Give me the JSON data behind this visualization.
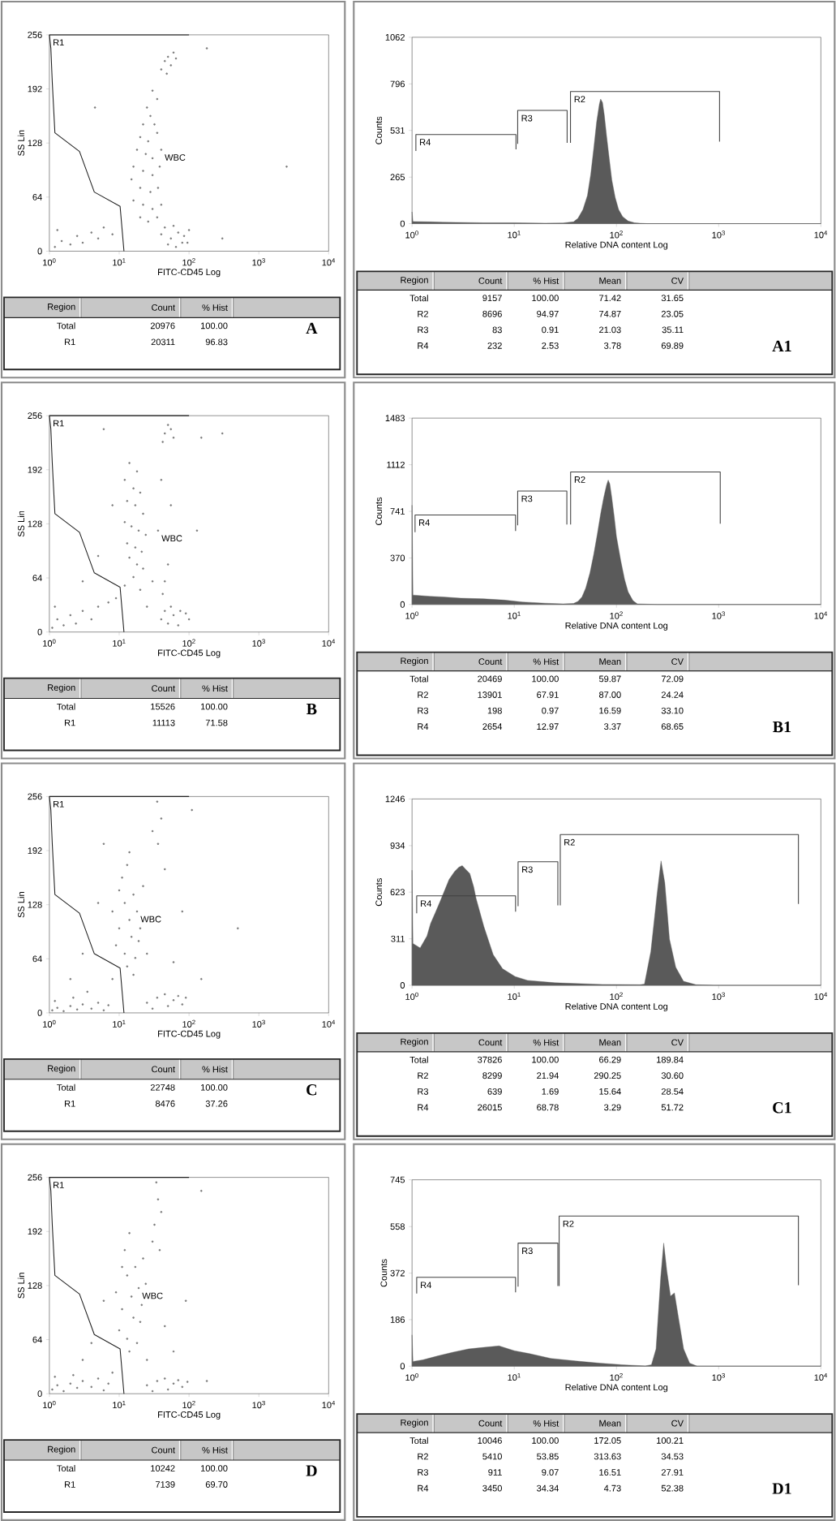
{
  "chart_data": [
    {
      "type": "scatter",
      "title": "A",
      "xlabel": "FITC-CD45 Log",
      "ylabel": "SS Lin",
      "log": "x",
      "xlim": [
        1,
        10000
      ],
      "ylim": [
        0,
        256
      ],
      "xticks": [
        {
          "value": 1,
          "label": "10$^{0}$"
        },
        {
          "value": 10,
          "label": "10$^{1}$"
        },
        {
          "value": 100,
          "label": "10$^{2}$"
        },
        {
          "value": 1000,
          "label": "10$^{3}$"
        },
        {
          "value": 10000,
          "label": "10$^{4}$"
        }
      ],
      "yticks": [
        0,
        64,
        128,
        192,
        256
      ],
      "series": [
        {
          "type": "scatter",
          "color": "#787878",
          "x": [
            45,
            50,
            55,
            60,
            40,
            48,
            65,
            30,
            35,
            25,
            28,
            22,
            32,
            20,
            26,
            35,
            18,
            24,
            30,
            40,
            16,
            22,
            30,
            38,
            15,
            20,
            28,
            36,
            16,
            22,
            30,
            40,
            20,
            26,
            35,
            40,
            55,
            70,
            85,
            100,
            50,
            65,
            80,
            45,
            95,
            60,
            1.2,
            1.5,
            2,
            2.5,
            3,
            4,
            5,
            6,
            1.3,
            8,
            2500,
            180,
            4.5,
            300
          ],
          "values": [
            225,
            230,
            220,
            235,
            215,
            210,
            228,
            190,
            180,
            170,
            160,
            150,
            150,
            135,
            130,
            140,
            120,
            115,
            110,
            120,
            100,
            95,
            90,
            100,
            85,
            75,
            70,
            75,
            60,
            55,
            50,
            55,
            40,
            35,
            40,
            20,
            15,
            22,
            18,
            25,
            8,
            5,
            10,
            28,
            10,
            30,
            5,
            12,
            8,
            18,
            10,
            22,
            15,
            28,
            25,
            20,
            100,
            240,
            170,
            15
          ]
        },
        {
          "type": "line",
          "color": "#202020",
          "x": [
            100,
            1,
            1.05,
            1.1,
            1.2,
            2.7,
            4.4,
            10.3,
            11.7
          ],
          "values": [
            256,
            256,
            240,
            200,
            140,
            118,
            70,
            53,
            0
          ]
        }
      ],
      "annotations": [
        {
          "text": "R1",
          "x": 1,
          "y": 256
        },
        {
          "text": "WBC",
          "x": 40,
          "y": 120
        },
        "Region",
        "Count",
        "% Hist",
        "Total",
        "20976",
        "100.00",
        "R1",
        "20311",
        "96.83"
      ]
    },
    {
      "type": "area",
      "title": "A1",
      "xlabel": "Relative DNA content Log",
      "ylabel": "Counts",
      "log": "x",
      "xlim": [
        1,
        10000
      ],
      "ylim": [
        0,
        1062
      ],
      "xticks": [
        {
          "value": 1,
          "label": "10$^{0}$"
        },
        {
          "value": 10,
          "label": "10$^{1}$"
        },
        {
          "value": 100,
          "label": "10$^{2}$"
        },
        {
          "value": 1000,
          "label": "10$^{3}$"
        },
        {
          "value": 10000,
          "label": "10$^{4}$"
        }
      ],
      "yticks": [
        0,
        265,
        531,
        796,
        1062
      ],
      "series": [
        {
          "type": "area",
          "color": "#5a5a5a",
          "x": [
            1,
            1.02,
            1.5,
            2,
            5,
            10,
            20,
            30,
            38,
            42,
            47,
            52,
            56,
            60,
            64,
            68,
            70,
            73,
            76,
            80,
            85,
            90,
            97,
            105,
            115,
            130,
            150,
            170,
            200,
            10000
          ],
          "values": [
            67,
            12,
            10,
            8,
            5,
            5,
            3,
            4,
            10,
            30,
            80,
            160,
            280,
            430,
            580,
            680,
            710,
            690,
            620,
            500,
            370,
            250,
            150,
            80,
            40,
            15,
            5,
            2,
            0,
            0
          ]
        },
        {
          "type": "line",
          "color": "#404040",
          "x": [
            1.09,
            1.09,
            10.4,
            10.4
          ],
          "values": [
            414,
            508,
            508,
            423
          ]
        },
        {
          "type": "line",
          "color": "#404040",
          "x": [
            10.8,
            10.8,
            32.9,
            32.9
          ],
          "values": [
            455,
            645,
            645,
            460
          ]
        },
        {
          "type": "line",
          "color": "#404040",
          "x": [
            35.5,
            35.5,
            1020,
            1020
          ],
          "values": [
            460,
            753,
            753,
            467
          ]
        }
      ],
      "annotations": [
        {
          "text": "R4",
          "x": 1.09,
          "y": 508
        },
        {
          "text": "R3",
          "x": 10.8,
          "y": 645
        },
        {
          "text": "R2",
          "x": 35.5,
          "y": 753
        },
        "Region",
        "Count",
        "% Hist",
        "Mean",
        "CV",
        "Total",
        "9157",
        "100.00",
        "71.42",
        "31.65",
        "R2",
        "8696",
        "94.97",
        "74.87",
        "23.05",
        "R3",
        "83",
        "0.91",
        "21.03",
        "35.11",
        "R4",
        "232",
        "2.53",
        "3.78",
        "69.89"
      ]
    },
    {
      "type": "scatter",
      "title": "B",
      "xlabel": "FITC-CD45 Log",
      "ylabel": "SS Lin",
      "log": "x",
      "xlim": [
        1,
        10000
      ],
      "ylim": [
        0,
        256
      ],
      "xticks": [
        {
          "value": 1,
          "label": "10$^{0}$"
        },
        {
          "value": 10,
          "label": "10$^{1}$"
        },
        {
          "value": 100,
          "label": "10$^{2}$"
        },
        {
          "value": 1000,
          "label": "10$^{3}$"
        },
        {
          "value": 10000,
          "label": "10$^{4}$"
        }
      ],
      "yticks": [
        0,
        64,
        128,
        192,
        256
      ],
      "series": [
        {
          "type": "scatter",
          "color": "#787878",
          "x": [
            45,
            50,
            42,
            55,
            60,
            14,
            18,
            12,
            16,
            20,
            13,
            17,
            22,
            12,
            15,
            19,
            24,
            13,
            17,
            21,
            14,
            18,
            22,
            16,
            12,
            20,
            45,
            42,
            50,
            48,
            55,
            40,
            40,
            50,
            60,
            75,
            90,
            55,
            70,
            100,
            45,
            1.1,
            1.3,
            1.6,
            2,
            2.4,
            3,
            4,
            5,
            7,
            1.2,
            9,
            3,
            5,
            8,
            150,
            300,
            130,
            6,
            25,
            30,
            36
          ],
          "values": [
            235,
            245,
            225,
            240,
            230,
            200,
            190,
            180,
            170,
            165,
            155,
            150,
            140,
            130,
            125,
            120,
            115,
            105,
            100,
            95,
            88,
            80,
            75,
            65,
            55,
            50,
            60,
            45,
            80,
            110,
            150,
            180,
            15,
            10,
            20,
            25,
            22,
            30,
            8,
            15,
            25,
            5,
            15,
            8,
            20,
            10,
            25,
            15,
            30,
            35,
            30,
            40,
            60,
            90,
            150,
            230,
            235,
            120,
            240,
            30,
            60,
            120
          ]
        },
        {
          "type": "line",
          "color": "#202020",
          "x": [
            100,
            1,
            1.05,
            1.1,
            1.2,
            2.7,
            4.4,
            10.3,
            11.7
          ],
          "values": [
            256,
            256,
            240,
            200,
            140,
            118,
            70,
            53,
            0
          ]
        }
      ],
      "annotations": [
        {
          "text": "R1",
          "x": 1,
          "y": 256
        },
        {
          "text": "WBC",
          "x": 36,
          "y": 120
        },
        "Region",
        "Count",
        "% Hist",
        "Total",
        "15526",
        "100.00",
        "R1",
        "11113",
        "71.58"
      ]
    },
    {
      "type": "area",
      "title": "B1",
      "xlabel": "Relative DNA content Log",
      "ylabel": "Counts",
      "log": "x",
      "xlim": [
        1,
        10000
      ],
      "ylim": [
        0,
        1483
      ],
      "xticks": [
        {
          "value": 1,
          "label": "10$^{0}$"
        },
        {
          "value": 10,
          "label": "10$^{1}$"
        },
        {
          "value": 100,
          "label": "10$^{2}$"
        },
        {
          "value": 1000,
          "label": "10$^{3}$"
        },
        {
          "value": 10000,
          "label": "10$^{4}$"
        }
      ],
      "yticks": [
        0,
        370,
        741,
        1112,
        1483
      ],
      "series": [
        {
          "type": "area",
          "color": "#5a5a5a",
          "x": [
            1,
            1.02,
            1.5,
            2,
            3,
            5,
            8,
            12,
            20,
            30,
            38,
            42,
            46,
            50,
            55,
            60,
            65,
            70,
            75,
            80,
            83,
            86,
            90,
            95,
            100,
            110,
            120,
            130,
            145,
            160,
            250,
            10000
          ],
          "values": [
            790,
            75,
            65,
            60,
            50,
            45,
            35,
            20,
            10,
            5,
            8,
            25,
            60,
            130,
            250,
            400,
            560,
            720,
            850,
            950,
            990,
            960,
            850,
            700,
            540,
            350,
            200,
            100,
            30,
            5,
            0,
            0
          ]
        },
        {
          "type": "line",
          "color": "#404040",
          "x": [
            1.07,
            1.07,
            10.3,
            10.3
          ],
          "values": [
            575,
            712,
            712,
            585
          ]
        },
        {
          "type": "line",
          "color": "#404040",
          "x": [
            10.8,
            10.8,
            32.7,
            32.7
          ],
          "values": [
            630,
            903,
            903,
            637
          ]
        },
        {
          "type": "line",
          "color": "#404040",
          "x": [
            35.6,
            35.6,
            1036,
            1036
          ],
          "values": [
            637,
            1055,
            1055,
            642
          ]
        }
      ],
      "annotations": [
        {
          "text": "R4",
          "x": 1.07,
          "y": 712
        },
        {
          "text": "R3",
          "x": 10.8,
          "y": 903
        },
        {
          "text": "R2",
          "x": 35.6,
          "y": 1055
        },
        "Region",
        "Count",
        "% Hist",
        "Mean",
        "CV",
        "Total",
        "20469",
        "100.00",
        "59.87",
        "72.09",
        "R2",
        "13901",
        "67.91",
        "87.00",
        "24.24",
        "R3",
        "198",
        "0.97",
        "16.59",
        "33.10",
        "R4",
        "2654",
        "12.97",
        "3.37",
        "68.65"
      ]
    },
    {
      "type": "scatter",
      "title": "C",
      "xlabel": "FITC-CD45 Log",
      "ylabel": "SS Lin",
      "log": "x",
      "xlim": [
        1,
        10000
      ],
      "ylim": [
        0,
        256
      ],
      "xticks": [
        {
          "value": 1,
          "label": "10$^{0}$"
        },
        {
          "value": 10,
          "label": "10$^{1}$"
        },
        {
          "value": 100,
          "label": "10$^{2}$"
        },
        {
          "value": 1000,
          "label": "10$^{3}$"
        },
        {
          "value": 10000,
          "label": "10$^{4}$"
        }
      ],
      "yticks": [
        0,
        64,
        128,
        192,
        256
      ],
      "series": [
        {
          "type": "scatter",
          "color": "#787878",
          "x": [
            8,
            10,
            12,
            14,
            16,
            11,
            13,
            15,
            18,
            9,
            20,
            12,
            17,
            22,
            14,
            10,
            19,
            13,
            16,
            36,
            40,
            35,
            45,
            30,
            25,
            35,
            45,
            60,
            80,
            50,
            70,
            30,
            90,
            1.1,
            1.3,
            1.6,
            2,
            2.5,
            3,
            4,
            5,
            6,
            1.2,
            2.2,
            3.5,
            7,
            3,
            5,
            6,
            25,
            60,
            80,
            110,
            2,
            150,
            500,
            8
          ],
          "values": [
            120,
            100,
            130,
            110,
            140,
            160,
            175,
            90,
            120,
            80,
            100,
            70,
            65,
            150,
            190,
            145,
            85,
            55,
            45,
            200,
            230,
            250,
            170,
            215,
            12,
            18,
            22,
            15,
            10,
            8,
            20,
            5,
            18,
            3,
            6,
            2,
            8,
            4,
            10,
            5,
            12,
            3,
            14,
            18,
            25,
            9,
            70,
            130,
            200,
            70,
            60,
            120,
            240,
            40,
            40,
            100,
            40
          ]
        },
        {
          "type": "line",
          "color": "#202020",
          "x": [
            100,
            1,
            1.05,
            1.1,
            1.2,
            2.7,
            4.4,
            10.3,
            11.7
          ],
          "values": [
            256,
            256,
            240,
            200,
            140,
            118,
            70,
            53,
            0
          ]
        }
      ],
      "annotations": [
        {
          "text": "R1",
          "x": 1,
          "y": 256
        },
        {
          "text": "WBC",
          "x": 18,
          "y": 120
        },
        "Region",
        "Count",
        "% Hist",
        "Total",
        "22748",
        "100.00",
        "R1",
        "8476",
        "37.26"
      ]
    },
    {
      "type": "area",
      "title": "C1",
      "xlabel": "Relative DNA content Log",
      "ylabel": "Counts",
      "log": "x",
      "xlim": [
        1,
        10000
      ],
      "ylim": [
        0,
        1246
      ],
      "xticks": [
        {
          "value": 1,
          "label": "10$^{0}$"
        },
        {
          "value": 10,
          "label": "10$^{1}$"
        },
        {
          "value": 100,
          "label": "10$^{2}$"
        },
        {
          "value": 1000,
          "label": "10$^{3}$"
        },
        {
          "value": 10000,
          "label": "10$^{4}$"
        }
      ],
      "yticks": [
        0,
        311,
        623,
        934,
        1246
      ],
      "series": [
        {
          "type": "area",
          "color": "#5a5a5a",
          "x": [
            1,
            1.02,
            1.2,
            1.4,
            1.52,
            1.7,
            1.88,
            2.1,
            2.3,
            2.6,
            2.87,
            3.1,
            3.3,
            3.67,
            4,
            4.23,
            5.04,
            6.22,
            7.68,
            10.2,
            13.5,
            25,
            73,
            170,
            188,
            217,
            249,
            273,
            297,
            330,
            380,
            453,
            601,
            900,
            10000
          ],
          "values": [
            770,
            280,
            250,
            330,
            414,
            490,
            560,
            640,
            707,
            760,
            790,
            800,
            780,
            748,
            660,
            581,
            393,
            205,
            111,
            59,
            33,
            17,
            6,
            4,
            8,
            226,
            602,
            832,
            686,
            309,
            121,
            27,
            4,
            0,
            0
          ]
        },
        {
          "type": "line",
          "color": "#404040",
          "x": [
            1.11,
            1.11,
            10.3,
            10.3
          ],
          "values": [
            481,
            598,
            598,
            493
          ]
        },
        {
          "type": "line",
          "color": "#404040",
          "x": [
            10.9,
            10.9,
            26.7,
            26.7
          ],
          "values": [
            529,
            826,
            826,
            535
          ]
        },
        {
          "type": "line",
          "color": "#404040",
          "x": [
            28.2,
            28.2,
            6030,
            6030
          ],
          "values": [
            535,
            1008,
            1008,
            544
          ]
        }
      ],
      "annotations": [
        {
          "text": "R4",
          "x": 1.11,
          "y": 598
        },
        {
          "text": "R3",
          "x": 10.9,
          "y": 826
        },
        {
          "text": "R2",
          "x": 28.2,
          "y": 1008
        },
        "Region",
        "Count",
        "% Hist",
        "Mean",
        "CV",
        "Total",
        "37826",
        "100.00",
        "66.29",
        "189.84",
        "R2",
        "8299",
        "21.94",
        "290.25",
        "30.60",
        "R3",
        "639",
        "1.69",
        "15.64",
        "28.54",
        "R4",
        "26015",
        "68.78",
        "3.29",
        "51.72"
      ]
    },
    {
      "type": "scatter",
      "title": "D",
      "xlabel": "FITC-CD45 Log",
      "ylabel": "SS Lin",
      "log": "x",
      "xlim": [
        1,
        10000
      ],
      "ylim": [
        0,
        256
      ],
      "xticks": [
        {
          "value": 1,
          "label": "10$^{0}$"
        },
        {
          "value": 10,
          "label": "10$^{1}$"
        },
        {
          "value": 100,
          "label": "10$^{2}$"
        },
        {
          "value": 1000,
          "label": "10$^{3}$"
        },
        {
          "value": 10000,
          "label": "10$^{4}$"
        }
      ],
      "yticks": [
        0,
        64,
        128,
        192,
        256
      ],
      "series": [
        {
          "type": "scatter",
          "color": "#787878",
          "x": [
            9,
            11,
            13,
            15,
            17,
            12,
            14,
            16,
            19,
            10,
            21,
            13,
            18,
            22,
            11,
            20,
            14,
            24,
            32,
            36,
            34,
            40,
            30,
            38,
            25,
            35,
            45,
            60,
            80,
            50,
            70,
            30,
            95,
            1.1,
            1.3,
            1.6,
            2,
            2.5,
            3,
            4,
            5,
            6,
            1.2,
            2.2,
            7,
            8,
            4,
            6,
            25,
            60,
            90,
            150,
            3,
            180,
            45
          ],
          "values": [
            120,
            100,
            140,
            115,
            150,
            170,
            190,
            90,
            125,
            75,
            105,
            65,
            60,
            160,
            150,
            85,
            50,
            130,
            200,
            230,
            250,
            215,
            180,
            170,
            10,
            15,
            18,
            12,
            8,
            5,
            16,
            3,
            14,
            5,
            10,
            3,
            12,
            7,
            15,
            8,
            18,
            4,
            20,
            22,
            12,
            25,
            60,
            110,
            40,
            50,
            110,
            240,
            40,
            15,
            80
          ]
        },
        {
          "type": "line",
          "color": "#202020",
          "x": [
            100,
            1,
            1.05,
            1.1,
            1.2,
            2.7,
            4.4,
            10.3,
            11.7
          ],
          "values": [
            256,
            256,
            240,
            200,
            140,
            118,
            70,
            53,
            0
          ]
        }
      ],
      "annotations": [
        {
          "text": "R1",
          "x": 1,
          "y": 256
        },
        {
          "text": "WBC",
          "x": 19,
          "y": 125
        },
        "Region",
        "Count",
        "% Hist",
        "Total",
        "10242",
        "100.00",
        "R1",
        "7139",
        "69.70"
      ]
    },
    {
      "type": "area",
      "title": "D1",
      "xlabel": "Relative DNA content Log",
      "ylabel": "Counts",
      "log": "x",
      "xlim": [
        1,
        10000
      ],
      "ylim": [
        0,
        745
      ],
      "xticks": [
        {
          "value": 1,
          "label": "10$^{0}$"
        },
        {
          "value": 10,
          "label": "10$^{1}$"
        },
        {
          "value": 100,
          "label": "10$^{2}$"
        },
        {
          "value": 1000,
          "label": "10$^{3}$"
        },
        {
          "value": 10000,
          "label": "10$^{4}$"
        }
      ],
      "yticks": [
        0,
        186,
        372,
        558,
        745
      ],
      "series": [
        {
          "type": "area",
          "color": "#5a5a5a",
          "x": [
            1,
            1.02,
            1.27,
            1.79,
            2.53,
            3.57,
            5.03,
            7.1,
            10,
            14.1,
            22.8,
            39.5,
            68.5,
            111,
            192,
            220,
            244,
            271,
            290,
            311,
            338,
            369,
            409,
            454,
            520,
            618,
            10000
          ],
          "values": [
            125,
            19,
            25,
            41,
            56,
            69,
            75,
            81,
            62,
            50,
            31,
            21,
            12,
            6,
            1,
            6,
            69,
            355,
            492,
            380,
            280,
            293,
            181,
            69,
            12,
            0,
            0
          ]
        },
        {
          "type": "line",
          "color": "#404040",
          "x": [
            1.11,
            1.11,
            10.3,
            10.3
          ],
          "values": [
            290,
            355,
            355,
            295
          ]
        },
        {
          "type": "line",
          "color": "#404040",
          "x": [
            10.9,
            10.9,
            26.7,
            26.7
          ],
          "values": [
            318,
            492,
            492,
            320
          ]
        },
        {
          "type": "line",
          "color": "#404040",
          "x": [
            27.5,
            27.5,
            6030,
            6030
          ],
          "values": [
            320,
            600,
            600,
            324
          ]
        }
      ],
      "annotations": [
        {
          "text": "R4",
          "x": 1.11,
          "y": 355
        },
        {
          "text": "R3",
          "x": 10.9,
          "y": 492
        },
        {
          "text": "R2",
          "x": 27.5,
          "y": 600
        },
        "Region",
        "Count",
        "% Hist",
        "Mean",
        "CV",
        "Total",
        "10046",
        "100.00",
        "172.05",
        "100.21",
        "R2",
        "5410",
        "53.85",
        "313.63",
        "34.53",
        "R3",
        "911",
        "9.07",
        "16.51",
        "27.91",
        "R4",
        "3450",
        "34.34",
        "4.73",
        "52.38"
      ]
    }
  ]
}
